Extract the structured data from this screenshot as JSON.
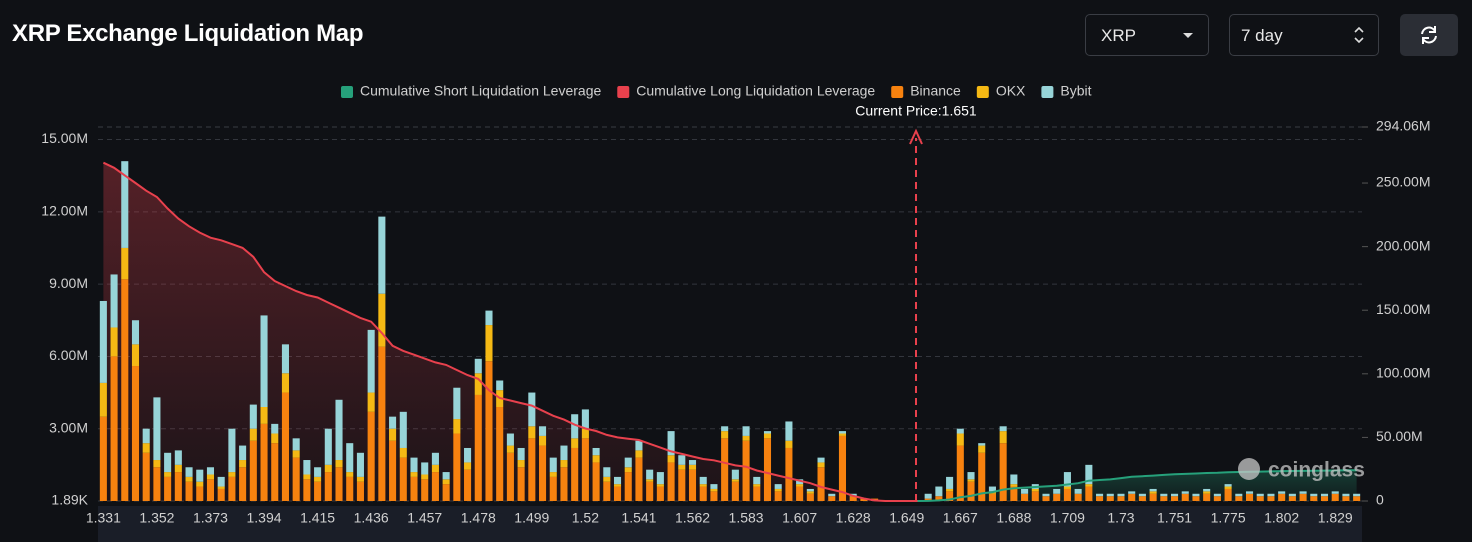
{
  "controls": {
    "coin": "XRP",
    "period": "7 day"
  },
  "watermark": "coinglass",
  "chart_data": {
    "type": "bar",
    "stacked": true,
    "title": "XRP Exchange Liquidation Map",
    "annotation": "Current Price:1.651",
    "grid": true,
    "categories": [
      "1.331",
      null,
      null,
      null,
      null,
      "1.352",
      null,
      null,
      null,
      null,
      "1.373",
      null,
      null,
      null,
      null,
      "1.394",
      null,
      null,
      null,
      null,
      "1.415",
      null,
      null,
      null,
      null,
      "1.436",
      null,
      null,
      null,
      null,
      "1.457",
      null,
      null,
      null,
      null,
      "1.478",
      null,
      null,
      null,
      null,
      "1.499",
      null,
      null,
      null,
      null,
      "1.52",
      null,
      null,
      null,
      null,
      "1.541",
      null,
      null,
      null,
      null,
      "1.562",
      null,
      null,
      null,
      null,
      "1.583",
      null,
      null,
      null,
      null,
      "1.607",
      null,
      null,
      null,
      null,
      "1.628",
      null,
      null,
      null,
      null,
      "1.649",
      null,
      null,
      null,
      null,
      "1.667",
      null,
      null,
      null,
      null,
      "1.688",
      null,
      null,
      null,
      null,
      "1.709",
      null,
      null,
      null,
      null,
      "1.73",
      null,
      null,
      null,
      null,
      "1.751",
      null,
      null,
      null,
      null,
      "1.775",
      null,
      null,
      null,
      null,
      "1.802",
      null,
      null,
      null,
      null,
      "1.829",
      null,
      null
    ],
    "ylim": [
      0.00189,
      15.52
    ],
    "yticks": [
      {
        "value": 0.00189,
        "label": "1.89K"
      },
      {
        "value": 3,
        "label": "3.00M"
      },
      {
        "value": 6,
        "label": "6.00M"
      },
      {
        "value": 9,
        "label": "9.00M"
      },
      {
        "value": 12,
        "label": "12.00M"
      },
      {
        "value": 15,
        "label": "15.00M"
      }
    ],
    "y2lim": [
      0,
      294.06
    ],
    "y2ticks": [
      0,
      {
        "value": 50,
        "label": "50.00M"
      },
      {
        "value": 100,
        "label": "100.00M"
      },
      {
        "value": 150,
        "label": "150.00M"
      },
      {
        "value": 200,
        "label": "200.00M"
      },
      {
        "value": 250,
        "label": "250.00M"
      },
      {
        "value": 294.06,
        "label": "294.06M"
      }
    ],
    "series": [
      {
        "name": "Cumulative Short Liquidation Leverage",
        "type": "line",
        "axis": "y2",
        "color": "#26a17b",
        "values": [
          null,
          null,
          null,
          null,
          null,
          null,
          null,
          null,
          null,
          null,
          null,
          null,
          null,
          null,
          null,
          null,
          null,
          null,
          null,
          null,
          null,
          null,
          null,
          null,
          null,
          null,
          null,
          null,
          null,
          null,
          null,
          null,
          null,
          null,
          null,
          null,
          null,
          null,
          null,
          null,
          null,
          null,
          null,
          null,
          null,
          null,
          null,
          null,
          null,
          null,
          null,
          null,
          null,
          null,
          null,
          null,
          null,
          null,
          null,
          null,
          null,
          null,
          null,
          null,
          null,
          null,
          null,
          null,
          null,
          null,
          null,
          null,
          null,
          null,
          null,
          null,
          0,
          0.1,
          0.5,
          1.2,
          3,
          4,
          6,
          7,
          9,
          10,
          10.5,
          11,
          11.5,
          12,
          13,
          14,
          16,
          16.5,
          17,
          18,
          19,
          19.5,
          20,
          20.5,
          21,
          21.3,
          21.6,
          22,
          22.2,
          22.6,
          22.8,
          23,
          23.1,
          23.3,
          23.5,
          23.6,
          23.7,
          23.8,
          23.9,
          24,
          24.1,
          24.2
        ]
      },
      {
        "name": "Cumulative Long Liquidation Leverage",
        "type": "line",
        "axis": "y2",
        "color": "#e8414d",
        "values": [
          266,
          262,
          256,
          250,
          244,
          239,
          230,
          222,
          216,
          211,
          207,
          205,
          202,
          199,
          192,
          180,
          173,
          169,
          165,
          162,
          160,
          156,
          152,
          148,
          144,
          141,
          132,
          122,
          118,
          115,
          112,
          109,
          107,
          103,
          99,
          96,
          87,
          81,
          79,
          77,
          75,
          71,
          67,
          64,
          60,
          57,
          55,
          52,
          50,
          49,
          48,
          45,
          42,
          39,
          37,
          35,
          33,
          32,
          30,
          28,
          27,
          24,
          22,
          20,
          18,
          16,
          14,
          11,
          9,
          7,
          4,
          2,
          0.5,
          0,
          0,
          0,
          0,
          null,
          null,
          null,
          null,
          null,
          null,
          null,
          null,
          null,
          null,
          null,
          null,
          null,
          null,
          null,
          null,
          null,
          null,
          null,
          null,
          null,
          null,
          null,
          null,
          null,
          null,
          null,
          null,
          null,
          null,
          null,
          null,
          null,
          null,
          null,
          null,
          null,
          null,
          null,
          null,
          null
        ]
      },
      {
        "name": "Binance",
        "type": "bar",
        "color": "#f7820f",
        "values": [
          3.5,
          6.0,
          9.2,
          5.6,
          2.0,
          1.4,
          1.0,
          1.2,
          0.8,
          0.6,
          0.9,
          0.5,
          1.0,
          1.4,
          2.5,
          3.2,
          2.4,
          4.5,
          1.8,
          0.9,
          0.8,
          1.2,
          1.4,
          1.0,
          0.8,
          3.7,
          6.4,
          2.5,
          1.8,
          1.0,
          0.9,
          1.2,
          0.7,
          2.8,
          1.3,
          4.4,
          5.8,
          3.9,
          2.0,
          1.4,
          2.6,
          2.3,
          1.0,
          1.4,
          2.2,
          2.6,
          1.6,
          0.8,
          0.6,
          1.2,
          1.8,
          0.8,
          0.6,
          1.6,
          1.3,
          1.3,
          0.6,
          0.4,
          2.6,
          0.8,
          2.5,
          0.6,
          2.6,
          0.4,
          2.2,
          0.6,
          0.3,
          1.4,
          0.2,
          2.7,
          0.2,
          0.1,
          0.1,
          0,
          0,
          0,
          0,
          0.1,
          0.2,
          0.4,
          2.3,
          0.8,
          2.0,
          0.3,
          2.4,
          0.6,
          0.3,
          0.4,
          0.2,
          0.3,
          0.5,
          0.3,
          0.6,
          0.2,
          0.2,
          0.2,
          0.3,
          0.2,
          0.3,
          0.2,
          0.2,
          0.3,
          0.2,
          0.3,
          0.2,
          0.5,
          0.2,
          0.3,
          0.2,
          0.2,
          0.3,
          0.2,
          0.3,
          0.2,
          0.2,
          0.3,
          0.2,
          0.2
        ]
      },
      {
        "name": "OKX",
        "type": "bar",
        "color": "#f5b914",
        "values": [
          1.4,
          1.2,
          1.3,
          0.9,
          0.4,
          0.3,
          0.2,
          0.3,
          0.2,
          0.2,
          0.2,
          0.1,
          0.2,
          0.3,
          0.5,
          0.7,
          0.4,
          0.8,
          0.3,
          0.2,
          0.2,
          0.3,
          0.3,
          0.2,
          0.2,
          0.8,
          2.2,
          0.5,
          0.4,
          0.2,
          0.2,
          0.3,
          0.2,
          0.6,
          0.3,
          0.9,
          1.5,
          0.7,
          0.3,
          0.3,
          0.5,
          0.4,
          0.2,
          0.3,
          0.4,
          0.4,
          0.3,
          0.2,
          0.1,
          0.2,
          0.3,
          0.1,
          0.1,
          0.3,
          0.2,
          0.2,
          0.1,
          0.1,
          0.3,
          0.1,
          0.2,
          0.1,
          0.2,
          0.1,
          0.3,
          0.1,
          0.1,
          0.2,
          0,
          0.1,
          0,
          0,
          0,
          0,
          0,
          0,
          0,
          0,
          0,
          0.1,
          0.5,
          0.1,
          0.3,
          0.1,
          0.5,
          0.1,
          0,
          0.1,
          0,
          0,
          0.1,
          0,
          0.1,
          0,
          0,
          0,
          0,
          0,
          0.1,
          0,
          0,
          0,
          0,
          0.1,
          0,
          0.1,
          0,
          0,
          0,
          0,
          0,
          0,
          0,
          0,
          0,
          0,
          0,
          0
        ]
      },
      {
        "name": "Bybit",
        "type": "bar",
        "color": "#97d4d8",
        "values": [
          3.4,
          2.2,
          3.6,
          1.0,
          0.6,
          2.6,
          0.8,
          0.6,
          0.4,
          0.5,
          0.3,
          0.4,
          1.8,
          0.6,
          1.0,
          3.8,
          0.4,
          1.2,
          0.5,
          0.6,
          0.4,
          1.5,
          2.5,
          1.2,
          1.0,
          2.6,
          3.2,
          0.5,
          1.5,
          0.6,
          0.5,
          0.5,
          0.3,
          1.3,
          0.6,
          0.6,
          0.6,
          0.4,
          0.5,
          0.5,
          1.4,
          0.4,
          0.6,
          0.6,
          1.0,
          0.8,
          0.3,
          0.4,
          0.3,
          0.4,
          0.4,
          0.4,
          0.5,
          1.0,
          0.4,
          0.2,
          0.3,
          0.2,
          0.2,
          0.4,
          0.4,
          0.3,
          0.1,
          0.2,
          0.8,
          0.2,
          0.1,
          0.2,
          0.1,
          0.1,
          0.1,
          0,
          0,
          0,
          0,
          0,
          0,
          0.2,
          0.4,
          0.5,
          0.2,
          0.3,
          0.1,
          0.2,
          0.2,
          0.4,
          0.2,
          0.2,
          0.1,
          0.2,
          0.6,
          0.2,
          0.8,
          0.1,
          0.1,
          0.1,
          0.1,
          0.1,
          0.1,
          0.1,
          0.1,
          0.1,
          0.1,
          0.1,
          0.1,
          0.1,
          0.1,
          0.1,
          0.1,
          0.1,
          0.1,
          0.1,
          0.1,
          0.1,
          0.1,
          0.1,
          0.1,
          0.1
        ]
      }
    ]
  }
}
